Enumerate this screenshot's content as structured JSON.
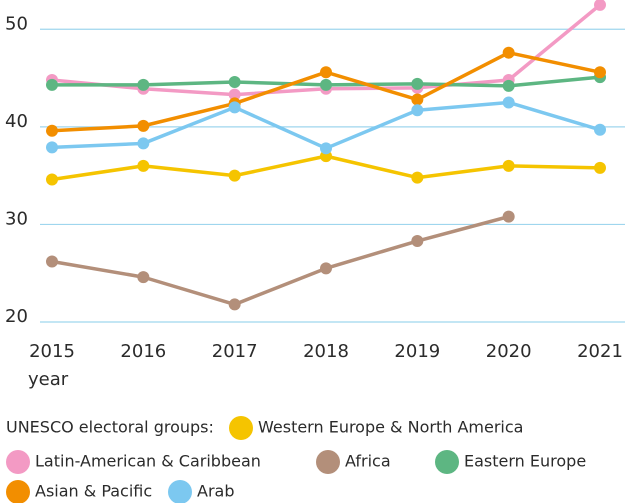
{
  "chart_data": {
    "type": "line",
    "x": [
      2015,
      2016,
      2017,
      2018,
      2019,
      2020,
      2021
    ],
    "xlabel": "year",
    "ylim": [
      20,
      53
    ],
    "yticks": [
      20,
      30,
      40,
      50
    ],
    "grid": true,
    "legend_title": "UNESCO electoral groups:",
    "series": [
      {
        "name": "Western Europe & North America",
        "color": "#f5c400",
        "values": [
          34.6,
          36.0,
          35.0,
          37.0,
          34.8,
          36.0,
          35.8
        ]
      },
      {
        "name": "Latin-American & Caribbean",
        "color": "#f39ac4",
        "values": [
          44.8,
          43.9,
          43.3,
          43.9,
          44.0,
          44.8,
          52.5
        ]
      },
      {
        "name": "Africa",
        "color": "#b38f7a",
        "values": [
          26.2,
          24.6,
          21.8,
          25.5,
          28.3,
          30.8,
          null
        ]
      },
      {
        "name": "Eastern Europe",
        "color": "#5db682",
        "values": [
          44.3,
          44.3,
          44.6,
          44.3,
          44.4,
          44.2,
          45.1
        ]
      },
      {
        "name": "Asian & Pacific",
        "color": "#f28e00",
        "values": [
          39.6,
          40.1,
          42.4,
          45.6,
          42.8,
          47.6,
          45.6
        ]
      },
      {
        "name": "Arab",
        "color": "#7cc8f0",
        "values": [
          37.9,
          38.3,
          42.0,
          37.8,
          41.7,
          42.5,
          39.7
        ]
      }
    ]
  }
}
